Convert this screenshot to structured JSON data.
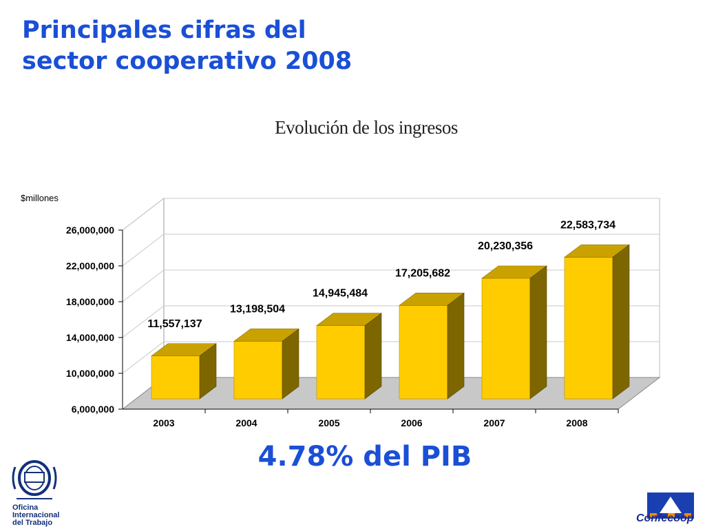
{
  "slide": {
    "title_line1": "Principales cifras del",
    "title_line2": "sector cooperativo 2008",
    "highlight": "4.78% del PIB"
  },
  "logos": {
    "oit_lines": [
      "Oficina",
      "Internacional",
      "del Trabajo"
    ],
    "confecoop": "Confecoop"
  },
  "chart_data": {
    "type": "bar",
    "title": "Evolución de los ingresos",
    "ylabel": "$millones",
    "categories": [
      "2003",
      "2004",
      "2005",
      "2006",
      "2007",
      "2008"
    ],
    "values": [
      11557137,
      13198504,
      14945484,
      17205682,
      20230356,
      22583734
    ],
    "value_labels": [
      "11,557,137",
      "13,198,504",
      "14,945,484",
      "17,205,682",
      "20,230,356",
      "22,583,734"
    ],
    "yticks": [
      6000000,
      10000000,
      14000000,
      18000000,
      22000000,
      26000000
    ],
    "ytick_labels": [
      "6,000,000",
      "10,000,000",
      "14,000,000",
      "18,000,000",
      "22,000,000",
      "26,000,000"
    ],
    "ylim": [
      6000000,
      26000000
    ],
    "grid": true,
    "style": "3d",
    "colors": {
      "front": "#ffcc00",
      "top": "#c9a200",
      "side": "#7d6600",
      "floor": "#c8c8c8"
    }
  }
}
